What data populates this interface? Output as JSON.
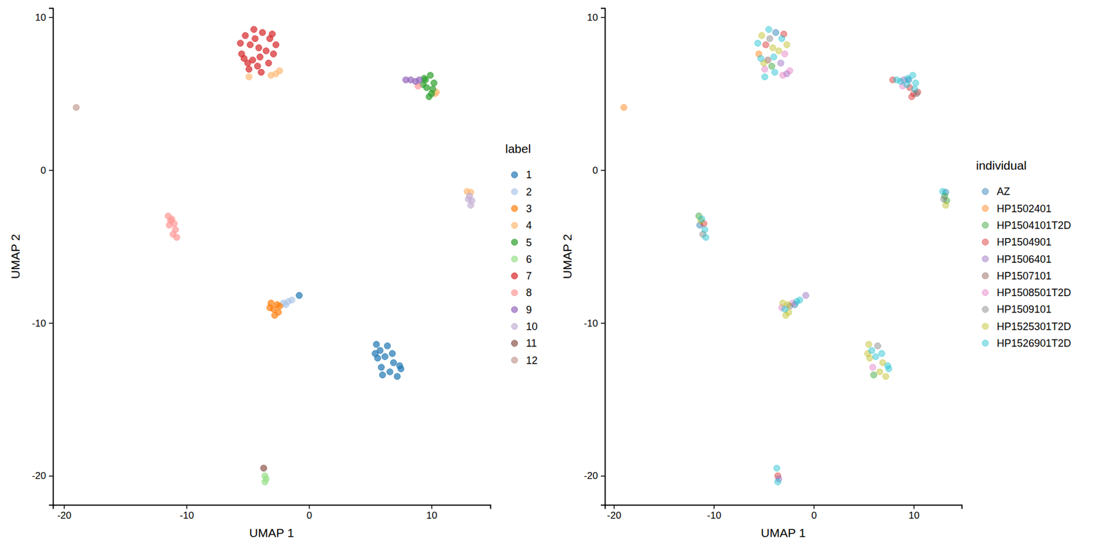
{
  "chart_data": [
    {
      "type": "scatter",
      "x_label": "UMAP 1",
      "y_label": "UMAP 2",
      "legend_title": "label",
      "legend": "right",
      "xlim": [
        -20.9,
        14.8
      ],
      "ylim": [
        -21.9,
        10.6
      ],
      "xticks": [
        -20,
        -10,
        0,
        10
      ],
      "yticks": [
        -20,
        -10,
        0,
        10
      ],
      "series": [
        {
          "name": "1",
          "color": "#1f77b4",
          "x": [
            5.5,
            5.8,
            6.4,
            5.6,
            6.2,
            6.9,
            7.4,
            5.9,
            6.6,
            7.2,
            7.5,
            6.0,
            5.4,
            6.8,
            -0.8
          ],
          "values": [
            -11.4,
            -11.8,
            -11.5,
            -12.3,
            -12.2,
            -12.6,
            -12.8,
            -12.9,
            -13.2,
            -13.5,
            -13.0,
            -13.4,
            -12.0,
            -12.0,
            -8.2
          ]
        },
        {
          "name": "2",
          "color": "#aec7e8",
          "x": [
            -2.1,
            -1.7,
            -1.4,
            -1.9
          ],
          "values": [
            -8.7,
            -8.6,
            -8.5,
            -8.8
          ]
        },
        {
          "name": "3",
          "color": "#ff7f0e",
          "x": [
            -3.1,
            -2.6,
            -2.9,
            -2.5,
            -2.8,
            -3.2,
            -2.4
          ],
          "values": [
            -8.7,
            -8.8,
            -9.1,
            -9.3,
            -9.5,
            -9.0,
            -8.9
          ]
        },
        {
          "name": "4",
          "color": "#ffbb78",
          "x": [
            -2.7,
            -2.4,
            -4.9,
            -3.1,
            10.3,
            10.4,
            12.9,
            13.2
          ],
          "values": [
            6.3,
            6.5,
            6.1,
            6.2,
            5.0,
            5.1,
            -1.4,
            -1.45
          ]
        },
        {
          "name": "5",
          "color": "#2ca02c",
          "x": [
            9.4,
            9.9,
            10.2,
            9.6,
            10.0,
            9.3,
            9.8,
            10.1,
            9.5
          ],
          "values": [
            6.0,
            6.2,
            5.7,
            5.4,
            5.0,
            5.6,
            4.8,
            5.3,
            5.9
          ]
        },
        {
          "name": "6",
          "color": "#98df8a",
          "x": [
            -3.6,
            -3.5,
            -3.6
          ],
          "values": [
            -20.0,
            -20.2,
            -20.4
          ]
        },
        {
          "name": "7",
          "color": "#d62728",
          "x": [
            -4.5,
            -3.8,
            -5.2,
            -3.2,
            -4.8,
            -3.5,
            -5.5,
            -4.0,
            -2.9,
            -5.0,
            -4.2,
            -3.3,
            -5.6,
            -2.7,
            -4.4,
            -3.9,
            -4.9,
            -3.0,
            -4.1,
            -5.3,
            -4.6
          ],
          "values": [
            9.2,
            9.0,
            8.8,
            8.6,
            8.2,
            7.8,
            7.6,
            7.4,
            7.6,
            7.0,
            6.8,
            7.0,
            8.3,
            8.2,
            8.6,
            6.4,
            6.6,
            8.9,
            8.0,
            7.3,
            7.2
          ]
        },
        {
          "name": "8",
          "color": "#ff9896",
          "x": [
            -11.5,
            -11.2,
            -11.0,
            -11.4,
            -10.9,
            -11.1,
            -10.8,
            -11.3,
            8.9
          ],
          "values": [
            -3.0,
            -3.2,
            -3.5,
            -3.6,
            -3.9,
            -4.2,
            -4.4,
            -3.3,
            5.5
          ]
        },
        {
          "name": "9",
          "color": "#9467bd",
          "x": [
            7.9,
            8.3,
            8.7,
            9.0
          ],
          "values": [
            5.9,
            5.9,
            5.8,
            5.9
          ]
        },
        {
          "name": "10",
          "color": "#c5b0d5",
          "x": [
            13.1,
            13.3,
            13.2,
            13.0
          ],
          "values": [
            -1.7,
            -2.0,
            -2.3,
            -1.9
          ]
        },
        {
          "name": "11",
          "color": "#8c564b",
          "x": [
            -3.7
          ],
          "values": [
            -19.5
          ]
        },
        {
          "name": "12",
          "color": "#c49c94",
          "x": [
            -19.0
          ],
          "values": [
            4.1
          ]
        }
      ]
    },
    {
      "type": "scatter",
      "x_label": "UMAP 1",
      "y_label": "UMAP 2",
      "legend_title": "individual",
      "legend": "right",
      "xlim": [
        -20.9,
        14.8
      ],
      "ylim": [
        -21.9,
        10.6
      ],
      "xticks": [
        -20,
        -10,
        0,
        10
      ],
      "yticks": [
        -20,
        -10,
        0,
        10
      ],
      "series": [
        {
          "name": "AZ",
          "color": "#1f77b4",
          "x": [
            -3.8,
            9.5,
            13.2,
            -11.4,
            -1.9
          ],
          "values": [
            9.0,
            5.9,
            -1.45,
            -3.6,
            -8.8
          ]
        },
        {
          "name": "HP1502401",
          "color": "#ff7f0e",
          "x": [
            -5.5,
            -19.0
          ],
          "values": [
            7.6,
            4.1
          ]
        },
        {
          "name": "HP1504101T2D",
          "color": "#2ca02c",
          "x": [
            -4.2,
            13.1,
            13.3,
            -11.5,
            6.0
          ],
          "values": [
            6.8,
            -1.7,
            -2.0,
            -3.0,
            -13.4
          ]
        },
        {
          "name": "HP1504901",
          "color": "#d62728",
          "x": [
            -4.8,
            -3.0,
            9.6,
            10.0,
            9.8,
            7.9,
            10.4,
            -11.0,
            -3.6
          ],
          "values": [
            8.2,
            8.9,
            5.4,
            5.0,
            4.8,
            5.9,
            5.1,
            -3.5,
            -20.0
          ]
        },
        {
          "name": "HP1506401",
          "color": "#9467bd",
          "x": [
            -3.3,
            -2.7,
            9.0,
            -0.8,
            -3.5
          ],
          "values": [
            7.0,
            6.3,
            5.9,
            -8.2,
            -20.2
          ]
        },
        {
          "name": "HP1507101",
          "color": "#8c564b",
          "x": [
            -4.6
          ],
          "values": [
            7.2
          ]
        },
        {
          "name": "HP1508501T2D",
          "color": "#e377c2",
          "x": [
            -2.9,
            -4.9,
            -2.4,
            -3.1,
            8.9,
            -3.2,
            -2.1,
            5.9
          ],
          "values": [
            7.6,
            6.6,
            6.5,
            6.2,
            5.5,
            -9.0,
            -8.7,
            -12.9
          ]
        },
        {
          "name": "HP1509101",
          "color": "#7f7f7f",
          "x": [
            -4.4,
            10.3,
            13.0,
            -11.1,
            -2.4,
            6.4
          ],
          "values": [
            8.6,
            5.0,
            -1.9,
            -4.2,
            -8.9,
            -11.5
          ]
        },
        {
          "name": "HP1525301T2D",
          "color": "#bcbd22",
          "x": [
            -5.2,
            -3.5,
            -5.0,
            -2.7,
            -4.1,
            13.2,
            -11.3,
            -3.1,
            -2.6,
            -2.5,
            -2.8,
            5.5,
            5.6,
            6.9,
            6.6,
            7.2,
            5.4
          ],
          "values": [
            8.8,
            7.8,
            7.0,
            8.2,
            8.0,
            -2.3,
            -3.3,
            -8.7,
            -8.8,
            -9.3,
            -9.5,
            -11.4,
            -12.3,
            -12.6,
            -13.2,
            -13.5,
            -12.0
          ]
        },
        {
          "name": "HP1526901T2D",
          "color": "#17becf",
          "x": [
            -4.5,
            -3.2,
            -4.0,
            -5.6,
            -3.9,
            -5.3,
            -4.9,
            9.4,
            9.9,
            10.2,
            9.3,
            10.1,
            8.3,
            8.7,
            12.9,
            -11.2,
            -10.9,
            -10.8,
            -2.9,
            -1.7,
            -1.4,
            5.8,
            6.2,
            7.4,
            7.5,
            6.8,
            -3.6,
            -3.7
          ],
          "values": [
            9.2,
            8.6,
            7.4,
            8.3,
            6.4,
            7.3,
            6.1,
            6.0,
            6.2,
            5.7,
            5.6,
            5.3,
            5.9,
            5.8,
            -1.4,
            -3.2,
            -3.9,
            -4.4,
            -9.1,
            -8.6,
            -8.5,
            -11.8,
            -12.2,
            -12.8,
            -13.0,
            -12.0,
            -20.4,
            -19.5
          ]
        }
      ]
    }
  ]
}
